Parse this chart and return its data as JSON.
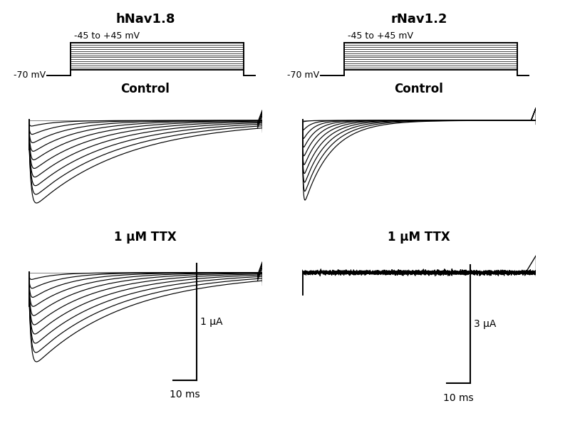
{
  "title_left": "hNav1.8",
  "title_right": "rNav1.2",
  "protocol_label_voltage": "-45 to +45 mV",
  "protocol_label_holding": "-70 mV",
  "control_label": "Control",
  "ttx_label": "1 μM TTX",
  "scale_bar_left_y": "1 μA",
  "scale_bar_left_x": "10 ms",
  "scale_bar_right_y": "3 μA",
  "scale_bar_right_x": "10 ms",
  "n_traces": 10,
  "bg_color": "#ffffff",
  "trace_color": "#000000",
  "title_fontsize": 13,
  "label_fontsize": 12,
  "scale_fontsize": 10,
  "proto_fontsize": 9
}
